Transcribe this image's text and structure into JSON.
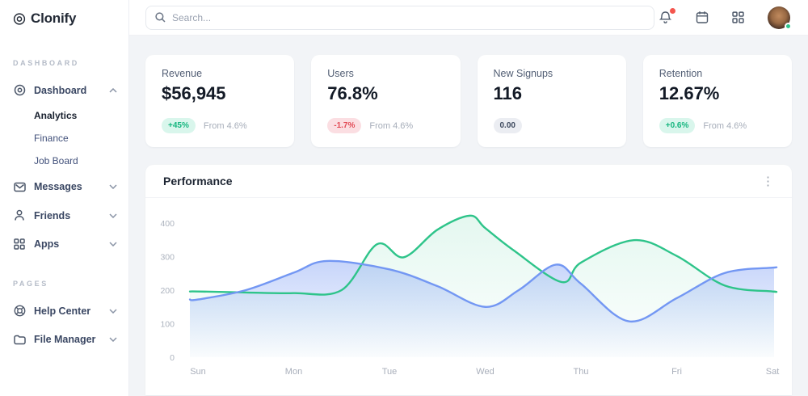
{
  "brand": {
    "name": "Clonify",
    "logo_icon": "clonify-logo-icon"
  },
  "sidebar": {
    "sections": [
      {
        "label": "DASHBOARD",
        "items": [
          {
            "label": "Dashboard",
            "icon": "dashboard-icon",
            "state": "expanded",
            "children": [
              {
                "label": "Analytics",
                "active": true
              },
              {
                "label": "Finance",
                "active": false
              },
              {
                "label": "Job Board",
                "active": false
              }
            ]
          },
          {
            "label": "Messages",
            "icon": "messages-icon",
            "state": "collapsed"
          },
          {
            "label": "Friends",
            "icon": "friends-icon",
            "state": "collapsed"
          },
          {
            "label": "Apps",
            "icon": "apps-icon",
            "state": "collapsed"
          }
        ]
      },
      {
        "label": "PAGES",
        "items": [
          {
            "label": "Help Center",
            "icon": "help-center-icon",
            "state": "collapsed"
          },
          {
            "label": "File Manager",
            "icon": "file-manager-icon",
            "state": "collapsed"
          }
        ]
      }
    ]
  },
  "topbar": {
    "search_placeholder": "Search...",
    "icons": [
      "search-icon",
      "bell-icon",
      "calendar-icon",
      "grid-icon"
    ],
    "bell_has_notification": true,
    "avatar_status": "online"
  },
  "stats": [
    {
      "title": "Revenue",
      "value": "$56,945",
      "badge": "+45%",
      "badge_type": "positive",
      "note": "From 4.6%"
    },
    {
      "title": "Users",
      "value": "76.8%",
      "badge": "-1.7%",
      "badge_type": "negative",
      "note": "From 4.6%"
    },
    {
      "title": "New Signups",
      "value": "116",
      "badge": "0.00",
      "badge_type": "neutral",
      "note": ""
    },
    {
      "title": "Retention",
      "value": "12.67%",
      "badge": "+0.6%",
      "badge_type": "positive",
      "note": "From 4.6%"
    }
  ],
  "panel": {
    "title": "Performance",
    "menu_icon": "kebab-menu-icon",
    "menu_glyph": "⋮"
  },
  "chart_data": {
    "type": "area",
    "title": "Performance",
    "categories": [
      "Sun",
      "Mon",
      "Tue",
      "Wed",
      "Thu",
      "Fri",
      "Sat"
    ],
    "ylim": [
      0,
      400
    ],
    "yticks": [
      0,
      100,
      200,
      300,
      400
    ],
    "grid": false,
    "legend": "none",
    "series": [
      {
        "name": "series-green",
        "color": "#2EC48A",
        "fill_top": "rgba(46,196,138,0.13)",
        "fill_bottom": "rgba(46,196,138,0.01)",
        "points": [
          [
            0,
            196
          ],
          [
            0.5,
            193
          ],
          [
            1,
            191
          ],
          [
            1.5,
            200
          ],
          [
            1.87,
            337
          ],
          [
            2.15,
            298
          ],
          [
            2.5,
            380
          ],
          [
            2.84,
            422
          ],
          [
            3,
            385
          ],
          [
            3.3,
            318
          ],
          [
            3.8,
            224
          ],
          [
            4,
            282
          ],
          [
            4.55,
            349
          ],
          [
            5,
            302
          ],
          [
            5.5,
            214
          ],
          [
            6,
            196
          ]
        ]
      },
      {
        "name": "series-blue",
        "color": "#7397F3",
        "fill_top": "rgba(115,150,243,0.40)",
        "fill_bottom": "rgba(115,150,243,0.02)",
        "points": [
          [
            0,
            172
          ],
          [
            0.5,
            200
          ],
          [
            1,
            252
          ],
          [
            1.35,
            287
          ],
          [
            2,
            262
          ],
          [
            2.5,
            212
          ],
          [
            3,
            150
          ],
          [
            3.35,
            200
          ],
          [
            3.74,
            276
          ],
          [
            4,
            219
          ],
          [
            4.5,
            107
          ],
          [
            5,
            176
          ],
          [
            5.5,
            251
          ],
          [
            6,
            267
          ]
        ]
      }
    ]
  },
  "colors": {
    "accent_green": "#2EC48A",
    "accent_blue": "#7397F3",
    "positive": "#16B67F",
    "negative": "#E24A55",
    "page_bg": "#F2F4F7",
    "axis_label": "#ACB3BE"
  }
}
